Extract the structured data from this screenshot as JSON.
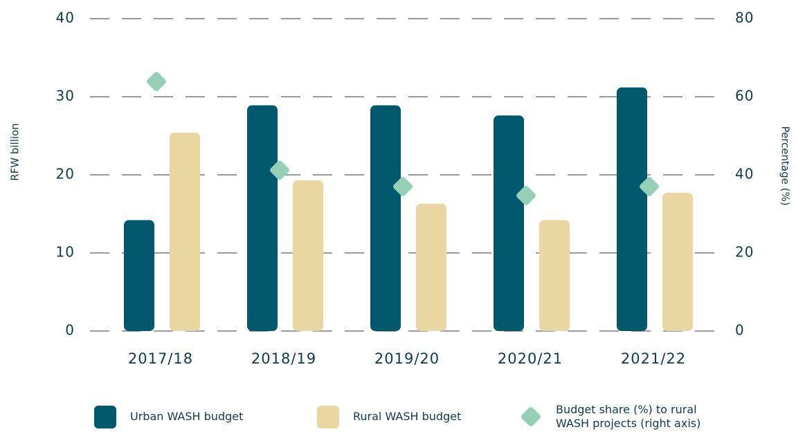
{
  "chart_data": {
    "type": "bar",
    "categories": [
      "2017/18",
      "2018/19",
      "2019/20",
      "2020/21",
      "2021/22"
    ],
    "series": [
      {
        "name": "Urban WASH budget",
        "color": "#00586c",
        "values": [
          14.2,
          28.9,
          28.9,
          27.6,
          31.2
        ]
      },
      {
        "name": "Rural WASH budget",
        "color": "#e9d6a0",
        "values": [
          25.4,
          19.3,
          16.3,
          14.2,
          17.7
        ]
      },
      {
        "name": "Budget share (%) to rural WASH projects (right axis)",
        "color": "#95cfb8",
        "type": "scatter",
        "axis": "y2",
        "values": [
          63.9,
          41.2,
          37.0,
          34.7,
          37.0
        ]
      }
    ],
    "ylabel": "RFW billion",
    "y2label": "Percentage (%)",
    "ylim": [
      0,
      40
    ],
    "yticks": [
      0,
      10,
      20,
      30,
      40
    ],
    "y2lim": [
      0,
      80
    ],
    "y2ticks": [
      0,
      20,
      40,
      60,
      80
    ],
    "grid": true,
    "legend": "bottom"
  }
}
